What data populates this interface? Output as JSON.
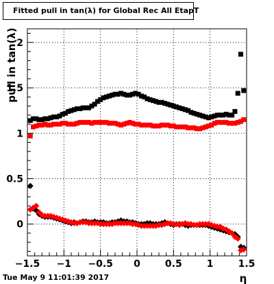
{
  "header": {
    "title": "Fitted pull in tan(λ) for Global Rec All EtapT",
    "timestamp": "Tue May  9 11:01:39 2017"
  },
  "chart_data": {
    "type": "scatter",
    "title": "Fitted pull in tan(λ) for Global Rec All EtapT",
    "xlabel": "η",
    "ylabel": "pull in tan(λ)",
    "xlim": [
      -1.5,
      1.5
    ],
    "ylim": [
      -0.35,
      2.15
    ],
    "grid": true,
    "xticks": [
      "−1.5",
      "−1",
      "−0.5",
      "0",
      "0.5",
      "1",
      "1.5"
    ],
    "yticks": [
      "0",
      "0.5",
      "1",
      "1.5",
      "2"
    ],
    "colors": {
      "black": "#000000",
      "red": "#ff0000"
    },
    "series": [
      {
        "marker": "square",
        "color": "#000000",
        "x": [
          -1.46,
          -1.42,
          -1.38,
          -1.34,
          -1.3,
          -1.26,
          -1.22,
          -1.18,
          -1.14,
          -1.1,
          -1.06,
          -1.02,
          -0.98,
          -0.94,
          -0.9,
          -0.86,
          -0.82,
          -0.78,
          -0.74,
          -0.7,
          -0.66,
          -0.62,
          -0.58,
          -0.54,
          -0.5,
          -0.46,
          -0.42,
          -0.38,
          -0.34,
          -0.3,
          -0.26,
          -0.22,
          -0.18,
          -0.14,
          -0.1,
          -0.06,
          -0.02,
          0.02,
          0.06,
          0.1,
          0.14,
          0.18,
          0.22,
          0.26,
          0.3,
          0.34,
          0.38,
          0.42,
          0.46,
          0.5,
          0.54,
          0.58,
          0.62,
          0.66,
          0.7,
          0.74,
          0.78,
          0.82,
          0.86,
          0.9,
          0.94,
          0.98,
          1.02,
          1.06,
          1.1,
          1.14,
          1.18,
          1.22,
          1.26,
          1.3,
          1.34,
          1.38,
          1.42,
          1.46
        ],
        "values": [
          1.14,
          1.16,
          1.16,
          1.15,
          1.15,
          1.16,
          1.16,
          1.17,
          1.18,
          1.18,
          1.19,
          1.21,
          1.22,
          1.24,
          1.25,
          1.26,
          1.27,
          1.27,
          1.28,
          1.28,
          1.28,
          1.3,
          1.32,
          1.35,
          1.37,
          1.39,
          1.4,
          1.41,
          1.42,
          1.43,
          1.43,
          1.44,
          1.43,
          1.42,
          1.42,
          1.43,
          1.44,
          1.43,
          1.41,
          1.4,
          1.38,
          1.37,
          1.36,
          1.35,
          1.34,
          1.34,
          1.33,
          1.32,
          1.31,
          1.3,
          1.29,
          1.28,
          1.27,
          1.26,
          1.25,
          1.23,
          1.22,
          1.21,
          1.2,
          1.19,
          1.18,
          1.17,
          1.18,
          1.19,
          1.2,
          1.2,
          1.2,
          1.21,
          1.2,
          1.2,
          1.24,
          1.44,
          1.87,
          1.47
        ]
      },
      {
        "marker": "square",
        "color": "#ff0000",
        "x": [
          -1.46,
          -1.42,
          -1.38,
          -1.34,
          -1.3,
          -1.26,
          -1.22,
          -1.18,
          -1.14,
          -1.1,
          -1.06,
          -1.02,
          -0.98,
          -0.94,
          -0.9,
          -0.86,
          -0.82,
          -0.78,
          -0.74,
          -0.7,
          -0.66,
          -0.62,
          -0.58,
          -0.54,
          -0.5,
          -0.46,
          -0.42,
          -0.38,
          -0.34,
          -0.3,
          -0.26,
          -0.22,
          -0.18,
          -0.14,
          -0.1,
          -0.06,
          -0.02,
          0.02,
          0.06,
          0.1,
          0.14,
          0.18,
          0.22,
          0.26,
          0.3,
          0.34,
          0.38,
          0.42,
          0.46,
          0.5,
          0.54,
          0.58,
          0.62,
          0.66,
          0.7,
          0.74,
          0.78,
          0.82,
          0.86,
          0.9,
          0.94,
          0.98,
          1.02,
          1.06,
          1.1,
          1.14,
          1.18,
          1.22,
          1.26,
          1.3,
          1.34,
          1.38,
          1.42,
          1.46
        ],
        "values": [
          0.97,
          1.07,
          1.08,
          1.09,
          1.09,
          1.1,
          1.09,
          1.09,
          1.1,
          1.1,
          1.1,
          1.11,
          1.11,
          1.1,
          1.1,
          1.1,
          1.11,
          1.12,
          1.12,
          1.12,
          1.12,
          1.11,
          1.12,
          1.12,
          1.12,
          1.12,
          1.12,
          1.11,
          1.11,
          1.11,
          1.1,
          1.09,
          1.1,
          1.11,
          1.12,
          1.11,
          1.1,
          1.1,
          1.09,
          1.09,
          1.09,
          1.09,
          1.08,
          1.08,
          1.08,
          1.09,
          1.09,
          1.09,
          1.08,
          1.08,
          1.07,
          1.07,
          1.07,
          1.07,
          1.06,
          1.06,
          1.06,
          1.05,
          1.05,
          1.06,
          1.07,
          1.08,
          1.09,
          1.11,
          1.12,
          1.12,
          1.12,
          1.12,
          1.11,
          1.11,
          1.11,
          1.12,
          1.13,
          1.15
        ]
      },
      {
        "marker": "diamond",
        "color": "#000000",
        "x": [
          -1.46,
          -1.42,
          -1.38,
          -1.34,
          -1.3,
          -1.26,
          -1.22,
          -1.18,
          -1.14,
          -1.1,
          -1.06,
          -1.02,
          -0.98,
          -0.94,
          -0.9,
          -0.86,
          -0.82,
          -0.78,
          -0.74,
          -0.7,
          -0.66,
          -0.62,
          -0.58,
          -0.54,
          -0.5,
          -0.46,
          -0.42,
          -0.38,
          -0.34,
          -0.3,
          -0.26,
          -0.22,
          -0.18,
          -0.14,
          -0.1,
          -0.06,
          -0.02,
          0.02,
          0.06,
          0.1,
          0.14,
          0.18,
          0.22,
          0.26,
          0.3,
          0.34,
          0.38,
          0.42,
          0.46,
          0.5,
          0.54,
          0.58,
          0.62,
          0.66,
          0.7,
          0.74,
          0.78,
          0.82,
          0.86,
          0.9,
          0.94,
          0.98,
          1.02,
          1.06,
          1.1,
          1.14,
          1.18,
          1.22,
          1.26,
          1.3,
          1.34,
          1.38,
          1.42,
          1.46
        ],
        "values": [
          0.42,
          0.17,
          0.15,
          0.11,
          0.09,
          0.08,
          0.08,
          0.08,
          0.07,
          0.06,
          0.05,
          0.04,
          0.03,
          0.02,
          0.01,
          0.02,
          0.01,
          0.02,
          0.03,
          0.03,
          0.02,
          0.02,
          0.03,
          0.02,
          0.02,
          0.02,
          0.01,
          0.01,
          0.02,
          0.02,
          0.03,
          0.04,
          0.03,
          0.03,
          0.02,
          0.02,
          0.01,
          0.0,
          0.0,
          0.0,
          0.01,
          0.01,
          0.0,
          0.0,
          0.0,
          0.01,
          0.02,
          0.01,
          0.0,
          -0.01,
          0.0,
          0.0,
          0.0,
          -0.01,
          -0.02,
          -0.01,
          -0.01,
          -0.01,
          -0.01,
          -0.01,
          -0.01,
          -0.02,
          -0.03,
          -0.04,
          -0.05,
          -0.06,
          -0.07,
          -0.08,
          -0.09,
          -0.1,
          -0.11,
          -0.14,
          -0.25,
          -0.26
        ]
      },
      {
        "marker": "diamond",
        "color": "#ff0000",
        "x": [
          -1.46,
          -1.42,
          -1.38,
          -1.34,
          -1.3,
          -1.26,
          -1.22,
          -1.18,
          -1.14,
          -1.1,
          -1.06,
          -1.02,
          -0.98,
          -0.94,
          -0.9,
          -0.86,
          -0.82,
          -0.78,
          -0.74,
          -0.7,
          -0.66,
          -0.62,
          -0.58,
          -0.54,
          -0.5,
          -0.46,
          -0.42,
          -0.38,
          -0.34,
          -0.3,
          -0.26,
          -0.22,
          -0.18,
          -0.14,
          -0.1,
          -0.06,
          -0.02,
          0.02,
          0.06,
          0.1,
          0.14,
          0.18,
          0.22,
          0.26,
          0.3,
          0.34,
          0.38,
          0.42,
          0.46,
          0.5,
          0.54,
          0.58,
          0.62,
          0.66,
          0.7,
          0.74,
          0.78,
          0.82,
          0.86,
          0.9,
          0.94,
          0.98,
          1.02,
          1.06,
          1.1,
          1.14,
          1.18,
          1.22,
          1.26,
          1.3,
          1.34,
          1.38,
          1.42,
          1.46
        ],
        "values": [
          0.16,
          0.18,
          0.2,
          0.13,
          0.1,
          0.09,
          0.09,
          0.09,
          0.08,
          0.07,
          0.06,
          0.05,
          0.04,
          0.03,
          0.02,
          0.01,
          0.01,
          0.02,
          0.02,
          0.02,
          0.01,
          0.01,
          0.01,
          0.01,
          0.0,
          0.0,
          0.0,
          0.0,
          0.0,
          0.01,
          0.01,
          0.01,
          0.01,
          0.01,
          0.01,
          0.0,
          0.0,
          -0.01,
          -0.02,
          -0.02,
          -0.02,
          -0.02,
          -0.02,
          -0.02,
          -0.01,
          -0.01,
          0.0,
          0.01,
          0.01,
          0.0,
          0.0,
          -0.01,
          0.0,
          0.01,
          0.0,
          0.0,
          -0.01,
          -0.01,
          0.0,
          0.0,
          0.0,
          0.0,
          -0.01,
          -0.02,
          -0.03,
          -0.03,
          -0.05,
          -0.06,
          -0.08,
          -0.1,
          -0.14,
          -0.16,
          -0.29,
          -0.28
        ]
      }
    ]
  }
}
